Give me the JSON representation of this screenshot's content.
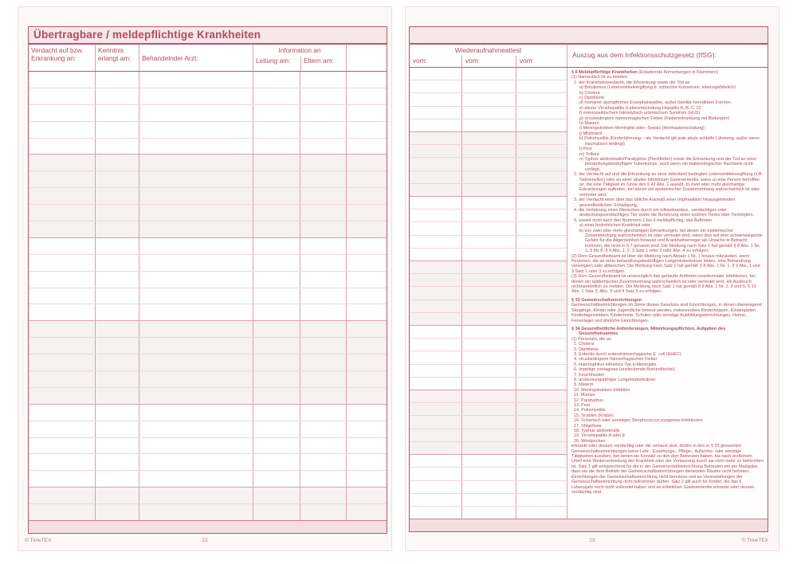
{
  "colors": {
    "accent": "#b24b61",
    "border_strong": "#bb5570",
    "row_line": "#f0d5da",
    "column_line": "#d8a2b0",
    "page_bg": "#fcf8f8",
    "title_bar_bg": "#f6e7e9",
    "tinted_row_bg": "#f7f1f1",
    "bottom_band_bg": "#f3dee2",
    "footer_text": "#bb7487"
  },
  "left_page": {
    "title": "Übertragbare / meldepflichtige Krankheiten",
    "table": {
      "row_count": 27,
      "headers": {
        "verdacht_l1": "Verdacht auf bzw.",
        "verdacht_l2": "Erkrankung an:",
        "kenntnis_l1": "Kenntnis",
        "kenntnis_l2": "erlangt am:",
        "arzt": "Behandelnder Arzt:",
        "info_group": "Information an",
        "leitung": "Leitung am:",
        "eltern": "Eltern am:"
      }
    },
    "footer": {
      "copyright": "© TimeTEX",
      "page_number": "22"
    }
  },
  "right_page": {
    "attest": {
      "title": "Wiederaufnahmeattest",
      "vom_labels": [
        "vom:",
        "vom:",
        "vom:"
      ],
      "row_count": 35
    },
    "law": {
      "title": "Auszug aus dem Infektionsschutzgesetz (IfSG):",
      "paragraphs": [
        {
          "cls": "h",
          "bold": "§ 6 Meldepflichtige Krankheiten",
          "text": " (Erläuternde Anmerkungen in Klammern)"
        },
        {
          "cls": "p0",
          "text": "(1) Namentlich ist zu melden:"
        },
        {
          "cls": "p1",
          "text": "1. der Krankheitsverdacht, die Erkrankung sowie der Tod an"
        },
        {
          "cls": "p2",
          "text": "a) Botulismus (Lebensmittelvergiftung d. schlechte Konserven, lebensgefährlich)"
        },
        {
          "cls": "p2",
          "text": "b) Cholera"
        },
        {
          "cls": "p2",
          "text": "c) Diphtherie"
        },
        {
          "cls": "p2",
          "text": "d) humaner spongiformer Enzephalopathie, außer familiär-hereditärer Formen"
        },
        {
          "cls": "p2",
          "text": "e) akuter Virushepatitis (Leberentzündung Hepatitis A, B, C, D)"
        },
        {
          "cls": "p2",
          "text": "f) enteropathischem hämolytisch-urämischem Syndrom (HUS)"
        },
        {
          "cls": "p2",
          "text": "g) virusbedingtem hämorrhagischen Fieber (Fiebererkrankung mit Blutungen)"
        },
        {
          "cls": "p2",
          "text": "h) Masern"
        },
        {
          "cls": "p2",
          "text": "i) Meningokokken-Meningitis oder -Sepsis (Hirnhautentzündung)"
        },
        {
          "cls": "p2",
          "text": "j) Milzbrand"
        },
        {
          "cls": "p2",
          "text": "k) Poliomyelitis (Kinderlähmung – als Verdacht gilt jede akute schlaffe Lähmung, außer wenn traumatisch bedingt)"
        },
        {
          "cls": "p2",
          "text": "l) Pest"
        },
        {
          "cls": "p2",
          "text": "m) Tollwut"
        },
        {
          "cls": "p2",
          "text": "n) Typhus abdominalis/Paratyphus (Fleckfieber) sowie die Erkrankung und der Tod an einer behandlungsbedürftigen Tuberkulose, auch wenn ein bakteriologischer Nachweis nicht vorliegt,"
        },
        {
          "cls": "p1",
          "text": "2. der Verdacht auf und die Erkrankung an einer mikrobiell bedingten Lebensmittelvergiftung (z.B. Salmonellen) oder an einer akuten infektiösen Gastroenteritis, wenn a) eine Person betroffen ist, die eine Tätigkeit im Sinne des § 42 Abs. 1 ausübt, b) zwei oder mehr gleichartige Erkrankungen auftreten, bei denen ein epidemischer Zusammenhang wahrscheinlich ist oder vermutet wird,"
        },
        {
          "cls": "p1",
          "text": "3. der Verdacht einer über das übliche Ausmaß einer Impfreaktion hinausgehenden gesundheitlichen Schädigung,"
        },
        {
          "cls": "p1",
          "text": "4. die Verletzung eines Menschen durch ein tollwutkrankes, -verdächtiges oder ansteckungsverdächtiges Tier sowie die Berührung eines solchen Tieres oder Tierkörpers,"
        },
        {
          "cls": "p1",
          "text": "5. soweit nicht nach den Nummern 1 bis 4 meldepflichtig, das Auftreten"
        },
        {
          "cls": "p2",
          "text": "a) einer bedrohlichen Krankheit oder"
        },
        {
          "cls": "p2",
          "text": "b) von zwei oder mehr gleichartigen Erkrankungen, bei denen ein epidemischer Zusammenhang wahrscheinlich ist oder vermutet wird, wenn dies auf eine schwerwiegende Gefahr für die Allgemeinheit hinweist und Krankheitserreger als Ursache in Betracht kommen, die nicht in § 7 genannt sind. Die Meldung nach Satz 1 hat gemäß § 8 Abs. 1 Nr. 1, 3 bis 8, § 9 Abs. 1, 2, 3 Satz 1 oder 3 oder Abs. 4 zu erfolgen."
        },
        {
          "cls": "p0",
          "text": "(2) Dem Gesundheitsamt ist über die Meldung nach Absatz 1 Nr. 1 hinaus mitzuteilen, wenn Personen, die an einer behandlungsbedürftigen Lungentuberkulose leiden, eine Behandlung verweigern oder abbrechen. Die Meldung nach Satz 1 hat gemäß § 8 Abs. 1 Nr. 1, § 9 Abs. 1 und 3 Satz 1 oder 3 zu erfolgen."
        },
        {
          "cls": "p0",
          "text": "(3) Dem Gesundheitsamt ist unverzüglich das gehäufte Auftreten nosokomialer Infektionen, bei denen ein epidemischer Zusammenhang wahrscheinlich ist oder vermutet wird, als Ausbruch nichtnamentlich zu melden. Die Meldung nach Satz 1 hat gemäß § 8 Abs. 1 Nr. 1, 3 und 5, § 10 Abs. 1 Satz 3, Abs. 3 und 4 Satz 3 zu erfolgen."
        },
        {
          "cls": "h",
          "bold": "§ 33 Gemeinschaftseinrichtungen"
        },
        {
          "cls": "p0",
          "text": "Gemeinschaftseinrichtungen im Sinne dieses Gesetzes sind Einrichtungen, in denen überwiegend Säuglinge, Kinder oder Jugendliche betreut werden, insbesondere Kinderkrippen, Kindergärten, Kindertagesstätten, Kinderhorte, Schulen oder sonstige Ausbildungseinrichtungen, Heime, Ferienlager und ähnliche Einrichtungen."
        },
        {
          "cls": "h2",
          "bold": "§ 34 Gesundheitliche Anforderungen, Mitwirkungspflichten, Aufgaben des Gesundheitsamtes"
        },
        {
          "cls": "p0",
          "text": "(1) Personen, die an"
        },
        {
          "cls": "p1",
          "text": "1. Cholera"
        },
        {
          "cls": "p1",
          "text": "2. Diphtherie"
        },
        {
          "cls": "p1",
          "text": "3. Enteritis durch enterohämorrhagische E. coli (EHEC)"
        },
        {
          "cls": "p1",
          "text": "4. virusbedingtem hämorrhagischen Fieber"
        },
        {
          "cls": "p1",
          "text": "5. Haemophilus influenza Typ b-Meningitis"
        },
        {
          "cls": "p1",
          "text": "6. Impetigo contagiosa (ansteckende Borkenflechte)"
        },
        {
          "cls": "p1",
          "text": "7. Keuchhusten"
        },
        {
          "cls": "p1",
          "text": "8. ansteckungsfähiger Lungentuberkulose"
        },
        {
          "cls": "p1",
          "text": "9. Masern"
        },
        {
          "cls": "p1",
          "text": "10. Meningokokken-Infektion"
        },
        {
          "cls": "p1",
          "text": "11. Mumps"
        },
        {
          "cls": "p1",
          "text": "12. Paratyphus"
        },
        {
          "cls": "p1",
          "text": "13. Pest"
        },
        {
          "cls": "p1",
          "text": "14. Poliomyelitis"
        },
        {
          "cls": "p1",
          "text": "15. Scabies (Krätze)"
        },
        {
          "cls": "p1",
          "text": "16. Scharlach oder sonstigen Streptococcus pyogenes-Infektionen"
        },
        {
          "cls": "p1",
          "text": "17. Shigellose"
        },
        {
          "cls": "p1",
          "text": "18. Typhus abdominalis"
        },
        {
          "cls": "p1",
          "text": "19. Virushepatitis A oder E"
        },
        {
          "cls": "p1",
          "text": "20. Windpocken"
        },
        {
          "cls": "p0",
          "text": "erkrankt oder dessen verdächtig oder die verlaust sind, dürfen in den in § 33 genannten Gemeinschaftseinrichtungen keine Lehr-, Erziehungs-, Pflege-, Aufsichts- oder sonstige Tätigkeiten ausüben, bei denen sie Kontakt zu den dort Betreuten haben, bis nach ärztlichem Urteil eine Weiterverbreitung der Krankheit oder der Verlausung durch sie nicht mehr zu befürchten ist. Satz 1 gilt entsprechend für die in der Gemeinschaftseinrichtung Betreuten mit der Maßgabe, dass sie die dem Betrieb der Gemeinschaftseinrichtungen dienenden Räume nicht betreten, Einrichtungen der Gemeinschaftseinrichtung nicht benutzen und an Veranstaltungen der Gemeinschaftseinrichtung nicht teilnehmen dürfen. Satz 2 gilt auch für Kinder, die das 6. Lebensjahr noch nicht vollendet haben und an infektiöser Gastroenteritis erkrankt oder dessen verdächtig sind."
        }
      ]
    },
    "footer": {
      "page_number": "23",
      "copyright": "© TimeTEX"
    }
  }
}
